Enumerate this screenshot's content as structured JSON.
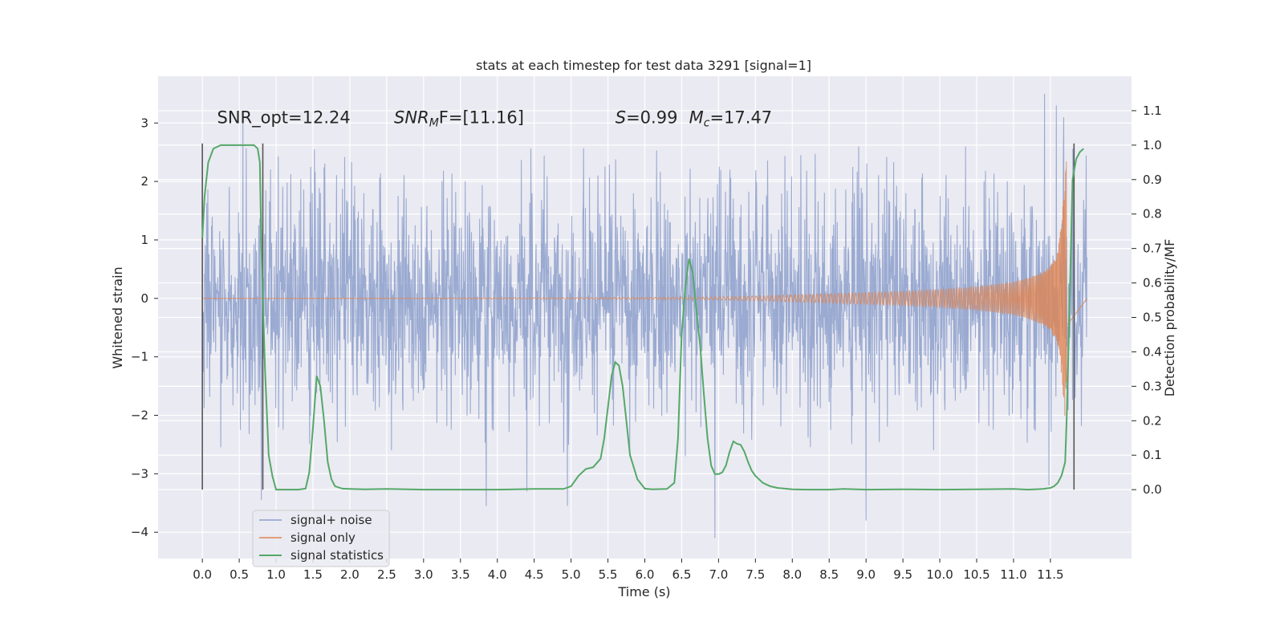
{
  "chart_data": {
    "type": "line",
    "title": "stats at each timestep for test data 3291 [signal=1]",
    "xlabel": "Time (s)",
    "ylabel": "Whitened strain",
    "ylabel_right": "Detection probability/MF",
    "xlim": [
      -0.6,
      12.6
    ],
    "ylim": [
      -4.45,
      3.8
    ],
    "ylim_right": [
      -0.2,
      1.2
    ],
    "x_ticks": [
      0.0,
      0.5,
      1.0,
      1.5,
      2.0,
      2.5,
      3.0,
      3.5,
      4.0,
      4.5,
      5.0,
      5.5,
      6.0,
      6.5,
      7.0,
      7.5,
      8.0,
      8.5,
      9.0,
      9.5,
      10.0,
      10.5,
      11.0,
      11.5
    ],
    "x_tick_labels": [
      "0.0",
      "0.5",
      "1.0",
      "1.5",
      "2.0",
      "2.5",
      "3.0",
      "3.5",
      "4.0",
      "4.5",
      "5.0",
      "5.5",
      "6.0",
      "6.5",
      "7.0",
      "7.5",
      "8.0",
      "8.5",
      "9.0",
      "9.5",
      "10.0",
      "10.5",
      "11.0",
      "11.5"
    ],
    "y_ticks": [
      -4,
      -3,
      -2,
      -1,
      0,
      1,
      2,
      3
    ],
    "y_tick_labels": [
      "−4",
      "−3",
      "−2",
      "−1",
      "0",
      "1",
      "2",
      "3"
    ],
    "y_ticks_right": [
      0.0,
      0.1,
      0.2,
      0.3,
      0.4,
      0.5,
      0.6,
      0.7,
      0.8,
      0.9,
      1.0,
      1.1
    ],
    "y_tick_labels_right": [
      "0.0",
      "0.1",
      "0.2",
      "0.3",
      "0.4",
      "0.5",
      "0.6",
      "0.7",
      "0.8",
      "0.9",
      "1.0",
      "1.1"
    ],
    "grid": true,
    "legend_position": "lower-left",
    "colors": {
      "noise": "#8c9fcb",
      "signal": "#dd8452",
      "stats": "#55a868",
      "background": "#eaeaf2",
      "grid": "#ffffff",
      "marker": "#555555"
    },
    "series": [
      {
        "name": "signal+ noise",
        "axis": "left",
        "kind": "noise-envelope",
        "x_range": [
          0.0,
          12.0
        ],
        "typical_abs": 1.5,
        "spikes": [
          [
            0.55,
            3.05
          ],
          [
            0.8,
            -3.45
          ],
          [
            1.52,
            2.55
          ],
          [
            3.85,
            -3.55
          ],
          [
            4.4,
            -3.3
          ],
          [
            4.95,
            -3.55
          ],
          [
            6.55,
            -2.7
          ],
          [
            6.95,
            -4.1
          ],
          [
            8.9,
            2.6
          ],
          [
            9.0,
            -3.8
          ],
          [
            10.35,
            2.6
          ],
          [
            11.42,
            3.5
          ],
          [
            11.58,
            3.3
          ],
          [
            11.48,
            -3.2
          ],
          [
            11.68,
            3.1
          ]
        ]
      },
      {
        "name": "signal only",
        "axis": "left",
        "kind": "chirp",
        "x": [
          0.0,
          1.0,
          2.0,
          3.0,
          4.0,
          5.0,
          6.0,
          7.0,
          7.5,
          8.0,
          8.5,
          9.0,
          9.5,
          10.0,
          10.5,
          11.0,
          11.2,
          11.4,
          11.5,
          11.6,
          11.65,
          11.7,
          11.72
        ],
        "amplitude": [
          0.0,
          0.003,
          0.005,
          0.007,
          0.01,
          0.013,
          0.017,
          0.025,
          0.04,
          0.06,
          0.08,
          0.1,
          0.12,
          0.15,
          0.2,
          0.28,
          0.35,
          0.45,
          0.55,
          0.8,
          1.3,
          2.1,
          2.4
        ]
      },
      {
        "name": "signal statistics",
        "axis": "right",
        "x": [
          0.0,
          0.03,
          0.08,
          0.15,
          0.25,
          0.4,
          0.55,
          0.7,
          0.75,
          0.78,
          0.8,
          0.85,
          0.9,
          0.95,
          1.0,
          1.1,
          1.2,
          1.3,
          1.4,
          1.45,
          1.5,
          1.55,
          1.6,
          1.65,
          1.7,
          1.75,
          1.8,
          1.9,
          2.0,
          2.2,
          2.5,
          3.0,
          4.0,
          4.5,
          4.9,
          5.0,
          5.1,
          5.2,
          5.3,
          5.4,
          5.45,
          5.5,
          5.55,
          5.6,
          5.65,
          5.7,
          5.75,
          5.8,
          5.9,
          6.0,
          6.1,
          6.3,
          6.4,
          6.45,
          6.5,
          6.55,
          6.6,
          6.65,
          6.7,
          6.75,
          6.8,
          6.85,
          6.9,
          6.95,
          7.0,
          7.05,
          7.1,
          7.15,
          7.2,
          7.25,
          7.3,
          7.35,
          7.4,
          7.45,
          7.5,
          7.55,
          7.6,
          7.7,
          7.8,
          7.9,
          8.0,
          8.2,
          8.5,
          8.7,
          9.0,
          9.5,
          10.0,
          10.5,
          11.0,
          11.2,
          11.4,
          11.5,
          11.55,
          11.6,
          11.65,
          11.7,
          11.72,
          11.75,
          11.8,
          11.85,
          11.9,
          11.95
        ],
        "values": [
          0.73,
          0.85,
          0.95,
          0.99,
          1.0,
          1.0,
          1.0,
          1.0,
          0.99,
          0.95,
          0.7,
          0.35,
          0.1,
          0.04,
          0.0,
          0.0,
          0.0,
          0.0,
          0.003,
          0.05,
          0.18,
          0.33,
          0.3,
          0.2,
          0.08,
          0.03,
          0.01,
          0.003,
          0.002,
          0.001,
          0.002,
          0.0,
          0.0,
          0.002,
          0.002,
          0.01,
          0.04,
          0.06,
          0.065,
          0.09,
          0.15,
          0.24,
          0.33,
          0.37,
          0.36,
          0.3,
          0.2,
          0.1,
          0.03,
          0.003,
          0.001,
          0.002,
          0.02,
          0.15,
          0.45,
          0.59,
          0.67,
          0.63,
          0.52,
          0.42,
          0.28,
          0.15,
          0.07,
          0.045,
          0.045,
          0.05,
          0.07,
          0.11,
          0.14,
          0.133,
          0.13,
          0.11,
          0.08,
          0.055,
          0.04,
          0.03,
          0.02,
          0.01,
          0.005,
          0.003,
          0.001,
          0.0,
          0.0,
          0.002,
          0.0,
          0.001,
          0.0,
          0.001,
          0.002,
          0.0,
          0.002,
          0.005,
          0.01,
          0.02,
          0.04,
          0.08,
          0.2,
          0.45,
          0.9,
          0.96,
          0.98,
          0.99
        ]
      }
    ],
    "markers_x": [
      0.0,
      0.82,
      11.82
    ],
    "annotations": [
      {
        "x": 0.2,
        "y": 3.0,
        "text": "SNR_opt=12.24"
      },
      {
        "x": 2.6,
        "y": 3.0,
        "text": "SNR",
        "sub": "M",
        "after": "F=[11.16]",
        "italic": true
      },
      {
        "x": 5.6,
        "y": 3.0,
        "text": "S",
        "after": "=0.99",
        "italic": true
      },
      {
        "x": 6.6,
        "y": 3.0,
        "text": "M",
        "sub": "c",
        "after": "=17.47",
        "italic": true
      }
    ]
  }
}
